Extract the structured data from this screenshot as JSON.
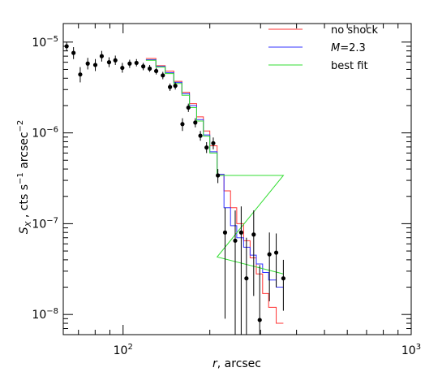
{
  "chart_data": {
    "type": "scatter",
    "xlabel": "r, arcsec",
    "ylabel": "S_X , cts s^-1 arcsec^-2",
    "x_scale": "log",
    "y_scale": "log",
    "xlim": [
      62,
      1000
    ],
    "ylim": [
      6e-09,
      1.6e-05
    ],
    "x_ticks": [
      {
        "value": 100,
        "label_base": "10",
        "label_exp": "2"
      },
      {
        "value": 1000,
        "label_base": "10",
        "label_exp": "3"
      }
    ],
    "y_ticks": [
      {
        "value": 1e-05,
        "label_base": "10",
        "label_exp": "−5"
      },
      {
        "value": 1e-06,
        "label_base": "10",
        "label_exp": "−6"
      },
      {
        "value": 1e-07,
        "label_base": "10",
        "label_exp": "−7"
      },
      {
        "value": 1e-08,
        "label_base": "10",
        "label_exp": "−8"
      }
    ],
    "legend": {
      "placement": "top-right",
      "items": [
        {
          "text": "no shock",
          "color": "#ff3333"
        },
        {
          "text": "M=2.3",
          "color": "#3333ff",
          "italic_part": "M",
          "rest": "=2.3"
        },
        {
          "text": "best fit",
          "color": "#33dd33"
        }
      ]
    },
    "data_points": [
      {
        "x": 63.7,
        "y": 9e-06,
        "ylo": 8e-06,
        "yhi": 1e-05
      },
      {
        "x": 67.3,
        "y": 7.6e-06,
        "ylo": 6.5e-06,
        "yhi": 8.8e-06
      },
      {
        "x": 71.0,
        "y": 4.4e-06,
        "ylo": 3.6e-06,
        "yhi": 5.3e-06
      },
      {
        "x": 75.4,
        "y": 5.8e-06,
        "ylo": 5e-06,
        "yhi": 6.7e-06
      },
      {
        "x": 80.1,
        "y": 5.6e-06,
        "ylo": 4.8e-06,
        "yhi": 6.5e-06
      },
      {
        "x": 84.3,
        "y": 7e-06,
        "ylo": 6.1e-06,
        "yhi": 8e-06
      },
      {
        "x": 89.4,
        "y": 6e-06,
        "ylo": 5.3e-06,
        "yhi": 6.8e-06
      },
      {
        "x": 94.0,
        "y": 6.3e-06,
        "ylo": 5.6e-06,
        "yhi": 7.1e-06
      },
      {
        "x": 99.4,
        "y": 5.2e-06,
        "ylo": 4.6e-06,
        "yhi": 5.9e-06
      },
      {
        "x": 105.4,
        "y": 5.8e-06,
        "ylo": 5.2e-06,
        "yhi": 6.4e-06
      },
      {
        "x": 111.3,
        "y": 5.9e-06,
        "ylo": 5.4e-06,
        "yhi": 6.5e-06
      },
      {
        "x": 117.5,
        "y": 5.4e-06,
        "ylo": 4.9e-06,
        "yhi": 5.9e-06
      },
      {
        "x": 123.7,
        "y": 5.1e-06,
        "ylo": 4.7e-06,
        "yhi": 5.6e-06
      },
      {
        "x": 130.3,
        "y": 4.8e-06,
        "ylo": 4.4e-06,
        "yhi": 5.2e-06
      },
      {
        "x": 137.4,
        "y": 4.3e-06,
        "ylo": 3.9e-06,
        "yhi": 4.7e-06
      },
      {
        "x": 145.5,
        "y": 3.2e-06,
        "ylo": 2.9e-06,
        "yhi": 3.5e-06
      },
      {
        "x": 151.8,
        "y": 3.3e-06,
        "ylo": 3e-06,
        "yhi": 3.6e-06
      },
      {
        "x": 160.7,
        "y": 1.25e-06,
        "ylo": 1.05e-06,
        "yhi": 1.45e-06
      },
      {
        "x": 168.5,
        "y": 1.9e-06,
        "ylo": 1.7e-06,
        "yhi": 2.1e-06
      },
      {
        "x": 178.1,
        "y": 1.3e-06,
        "ylo": 1.15e-06,
        "yhi": 1.45e-06
      },
      {
        "x": 185.5,
        "y": 9.3e-07,
        "ylo": 8.2e-07,
        "yhi": 1.05e-06
      },
      {
        "x": 194.9,
        "y": 6.9e-07,
        "ylo": 6e-07,
        "yhi": 7.9e-07
      },
      {
        "x": 205.6,
        "y": 7.7e-07,
        "ylo": 6.6e-07,
        "yhi": 8.9e-07
      },
      {
        "x": 213.3,
        "y": 3.4e-07,
        "ylo": 2.8e-07,
        "yhi": 4e-07
      },
      {
        "x": 225.9,
        "y": 8e-08,
        "ylo": 9e-09,
        "yhi": 1.5e-07
      },
      {
        "x": 245.0,
        "y": 6.5e-08,
        "ylo": 6e-09,
        "yhi": 1.4e-07
      },
      {
        "x": 257.0,
        "y": 8e-08,
        "ylo": 6e-09,
        "yhi": 1.55e-07
      },
      {
        "x": 268.0,
        "y": 2.5e-08,
        "ylo": 6e-09,
        "yhi": 7e-08
      },
      {
        "x": 284.0,
        "y": 7.6e-08,
        "ylo": 1.6e-08,
        "yhi": 1.4e-07
      },
      {
        "x": 298.0,
        "y": 8.7e-09,
        "ylo": 6e-09,
        "yhi": 3.5e-08
      },
      {
        "x": 322.0,
        "y": 4.6e-08,
        "ylo": 1.4e-08,
        "yhi": 8e-08
      },
      {
        "x": 340.0,
        "y": 4.8e-08,
        "ylo": 2e-08,
        "yhi": 7.8e-08
      },
      {
        "x": 360.0,
        "y": 2.5e-08,
        "ylo": 1.1e-08,
        "yhi": 4e-08
      }
    ],
    "series": [
      {
        "name": "no shock",
        "color": "#ff3333",
        "edges": [
          120,
          130,
          140,
          150,
          160,
          170,
          180,
          190,
          200,
          212,
          224,
          236,
          248,
          262,
          276,
          290,
          305,
          320,
          340,
          360
        ],
        "values": [
          6.6e-06,
          5.5e-06,
          4.8e-06,
          3.7e-06,
          2.8e-06,
          2.1e-06,
          1.5e-06,
          1.05e-06,
          7.2e-07,
          3.5e-07,
          2.3e-07,
          1.5e-07,
          1e-07,
          6.5e-08,
          4.2e-08,
          2.8e-08,
          1.7e-08,
          1.2e-08,
          8e-09
        ]
      },
      {
        "name": "M=2.3",
        "color": "#3333ff",
        "edges": [
          120,
          130,
          140,
          150,
          160,
          170,
          180,
          190,
          200,
          212,
          224,
          236,
          248,
          262,
          276,
          290,
          305,
          320,
          340,
          360
        ],
        "values": [
          6.4e-06,
          5.4e-06,
          4.6e-06,
          3.6e-06,
          2.7e-06,
          2e-06,
          1.4e-06,
          9.5e-07,
          6.2e-07,
          3.5e-07,
          1.5e-07,
          9.5e-08,
          7e-08,
          5.5e-08,
          4.5e-08,
          3.6e-08,
          2.9e-08,
          2.4e-08,
          2e-08
        ]
      },
      {
        "name": "best fit",
        "color": "#33dd33",
        "edges": [
          120,
          130,
          140,
          150,
          160,
          170,
          180,
          190,
          200,
          212,
          360
        ],
        "values": [
          6.3e-06,
          5.3e-06,
          4.5e-06,
          3.5e-06,
          2.6e-06,
          1.9e-06,
          1.35e-06,
          9.2e-07,
          6e-07,
          3.4e-07
        ],
        "tail": {
          "x_start": 212,
          "y_start": 4.3e-08,
          "x_end": 360,
          "y_end": 2.8e-08
        }
      }
    ]
  }
}
